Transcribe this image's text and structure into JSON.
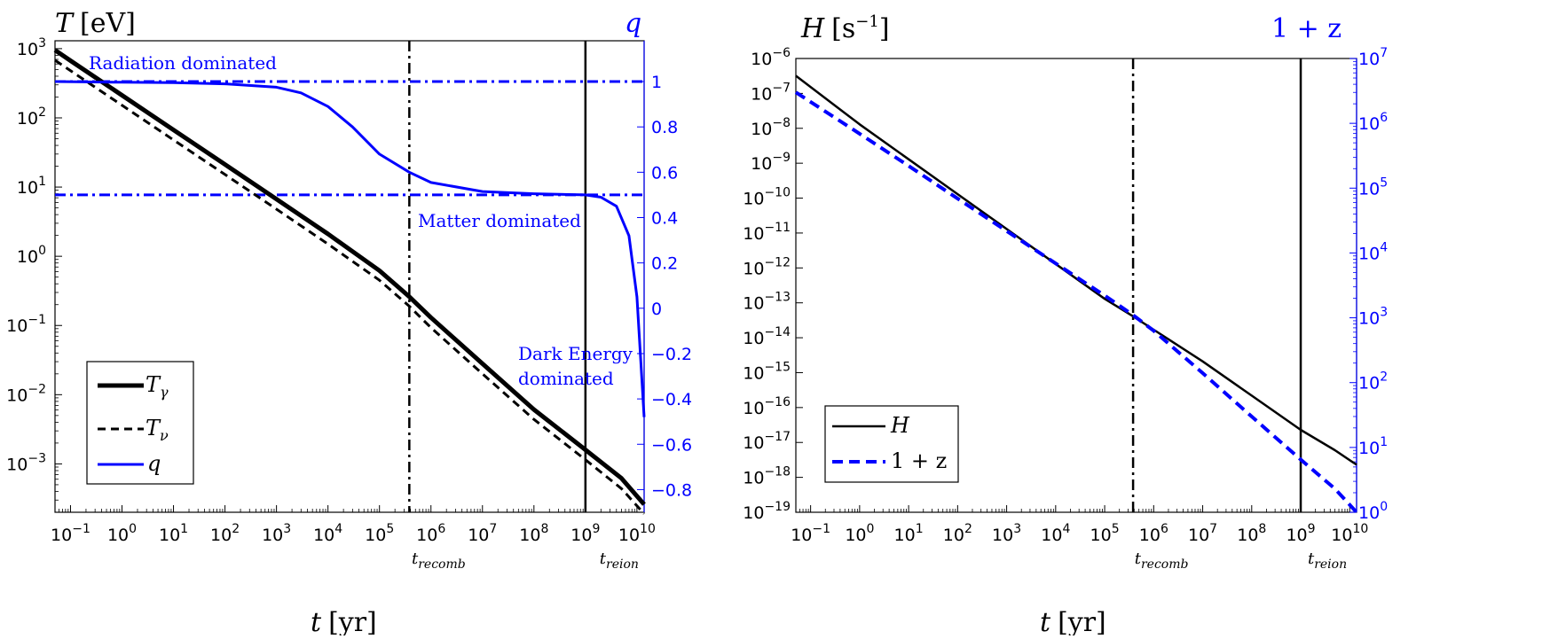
{
  "chart_data": [
    {
      "type": "line",
      "title": "",
      "xlabel_base": "t",
      "xlabel_unit": "[yr]",
      "ylabel_left": "T [eV]",
      "ylabel_left_base": "T",
      "ylabel_left_unit": "[eV]",
      "ylabel_right": "q",
      "x_scale": "log",
      "xlim": [
        0.05,
        13800000000
      ],
      "xtick_exponents": [
        "-1",
        "0",
        "1",
        "2",
        "3",
        "4",
        "5",
        "6",
        "7",
        "8",
        "9",
        "10"
      ],
      "y_left_scale": "log",
      "ylim_left": [
        0.0002,
        1300
      ],
      "y_left_tick_exponents": [
        "3",
        "2",
        "1",
        "0",
        "-1",
        "-2",
        "-3"
      ],
      "ylim_right": [
        -0.9,
        1.18
      ],
      "y_right_ticks": [
        "1",
        "0.8",
        "0.6",
        "0.4",
        "0.2",
        "0",
        "−0.2",
        "−0.4",
        "−0.6",
        "−0.8"
      ],
      "y_right_tick_values": [
        1,
        0.8,
        0.6,
        0.4,
        0.2,
        0,
        -0.2,
        -0.4,
        -0.6,
        -0.8
      ],
      "vertical_markers": [
        {
          "x": 380000,
          "label": "t",
          "sub": "recomb",
          "style": "dashdot"
        },
        {
          "x": 1000000000,
          "label": "t",
          "sub": "reion",
          "style": "solid"
        }
      ],
      "horizontal_reference_lines": [
        {
          "q": 1,
          "style": "dashdot",
          "color": "#0000ff"
        },
        {
          "q": 0.5,
          "style": "dashdot",
          "color": "#0000ff"
        }
      ],
      "annotations": [
        "Radiation dominated",
        "Matter dominated",
        "Dark Energy",
        "dominated"
      ],
      "legend": {
        "position": "lower-left",
        "entries": [
          "T_γ",
          "T_ν",
          "q"
        ]
      },
      "series": [
        {
          "name": "T_γ",
          "color": "#000000",
          "axis": "left",
          "style": "solid-thick",
          "x": [
            0.05,
            0.1,
            1,
            10,
            100,
            1000,
            10000,
            100000,
            380000,
            1000000,
            10000000,
            100000000,
            1000000000,
            5000000000,
            13800000000
          ],
          "y": [
            950,
            670,
            212,
            67,
            21.2,
            6.7,
            2.1,
            0.62,
            0.26,
            0.13,
            0.028,
            0.0061,
            0.0016,
            0.00062,
            0.00026
          ]
        },
        {
          "name": "T_ν",
          "color": "#000000",
          "axis": "left",
          "style": "dashed",
          "x": [
            0.05,
            0.1,
            1,
            10,
            100,
            1000,
            10000,
            100000,
            380000,
            1000000,
            10000000,
            100000000,
            1000000000,
            5000000000,
            13800000000
          ],
          "y": [
            680,
            480,
            152,
            48,
            15.2,
            4.8,
            1.5,
            0.45,
            0.19,
            0.093,
            0.02,
            0.0044,
            0.00115,
            0.00044,
            0.00019
          ]
        },
        {
          "name": "q",
          "color": "#0000ff",
          "axis": "right",
          "style": "solid",
          "x": [
            0.05,
            1,
            10,
            100,
            1000,
            3000,
            10000,
            30000,
            100000,
            380000,
            1000000,
            10000000,
            100000000,
            1000000000,
            2000000000,
            4000000000,
            7000000000,
            10000000000,
            13800000000
          ],
          "y": [
            1.0,
            0.997,
            0.995,
            0.99,
            0.975,
            0.95,
            0.89,
            0.8,
            0.68,
            0.6,
            0.555,
            0.515,
            0.505,
            0.5,
            0.49,
            0.45,
            0.32,
            0.05,
            -0.48
          ]
        }
      ]
    },
    {
      "type": "line",
      "title": "",
      "xlabel_base": "t",
      "xlabel_unit": "[yr]",
      "ylabel_left": "H [s^-1]",
      "ylabel_left_base": "H",
      "ylabel_left_unit": "[s",
      "ylabel_left_unit_sup": "−1",
      "ylabel_left_unit_end": "]",
      "ylabel_right": "1 + z",
      "x_scale": "log",
      "xlim": [
        0.05,
        13800000000
      ],
      "xtick_exponents": [
        "-1",
        "0",
        "1",
        "2",
        "3",
        "4",
        "5",
        "6",
        "7",
        "8",
        "9",
        "10"
      ],
      "y_left_scale": "log",
      "ylim_left": [
        1e-19,
        1e-06
      ],
      "y_left_tick_exponents": [
        "-6",
        "-7",
        "-8",
        "-9",
        "-10",
        "-11",
        "-12",
        "-13",
        "-14",
        "-15",
        "-16",
        "-17",
        "-18",
        "-19"
      ],
      "y_right_scale": "log",
      "ylim_right": [
        1,
        10000000
      ],
      "y_right_tick_exponents": [
        "0",
        "1",
        "2",
        "3",
        "4",
        "5",
        "6",
        "7"
      ],
      "vertical_markers": [
        {
          "x": 380000,
          "label": "t",
          "sub": "recomb",
          "style": "dashdot"
        },
        {
          "x": 1000000000,
          "label": "t",
          "sub": "reion",
          "style": "solid"
        }
      ],
      "legend": {
        "position": "lower-left",
        "entries": [
          "H",
          "1 + z"
        ]
      },
      "series": [
        {
          "name": "H",
          "color": "#000000",
          "axis": "left",
          "style": "solid",
          "x": [
            0.05,
            1,
            10,
            100,
            1000,
            10000,
            100000,
            380000,
            1000000,
            10000000,
            100000000,
            1000000000,
            5000000000,
            13800000000
          ],
          "y": [
            3.2e-07,
            1.3e-08,
            1.3e-09,
            1.3e-10,
            1.3e-11,
            1.3e-12,
            1.3e-13,
            4.1e-14,
            1.7e-14,
            2.1e-15,
            2.2e-16,
            2.3e-17,
            6e-18,
            2.3e-18
          ]
        },
        {
          "name": "1 + z",
          "color": "#0000ff",
          "axis": "right",
          "style": "dashed",
          "x": [
            0.05,
            1,
            10,
            100,
            1000,
            10000,
            100000,
            380000,
            1000000,
            10000000,
            100000000,
            1000000000,
            5000000000,
            13800000000
          ],
          "y": [
            3000000,
            690000,
            220000,
            69000,
            21800,
            6900,
            2200,
            1100,
            630,
            140,
            30,
            6.5,
            2.3,
            1.0
          ]
        }
      ]
    }
  ]
}
